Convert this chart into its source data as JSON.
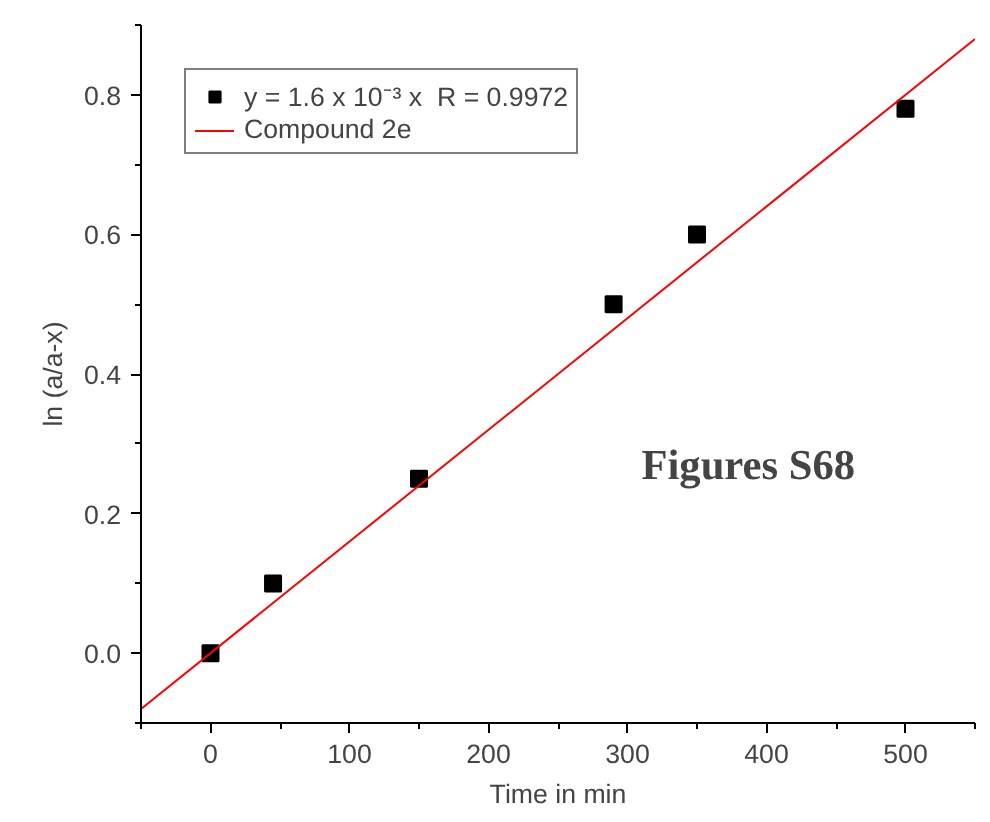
{
  "chart_data": {
    "type": "scatter",
    "xlabel": "Time in min",
    "ylabel": "ln (a/a-x)",
    "x": [
      0,
      45,
      150,
      290,
      350,
      500
    ],
    "series": [
      {
        "name": "y = 1.6 x 10⁻³ x  R = 0.9972",
        "color": "#000000",
        "values": [
          0,
          0.1,
          0.25,
          0.5,
          0.6,
          0.78
        ],
        "marker": "square"
      },
      {
        "name": "Compound 2e",
        "type": "line",
        "color": "#ff0000",
        "x": [
          -50,
          550
        ],
        "values": [
          -0.08,
          0.88
        ],
        "marker": "none",
        "line_style": "solid"
      }
    ],
    "xlim": [
      -50,
      550
    ],
    "ylim": [
      -0.1,
      0.9
    ],
    "xticks": [
      0,
      100,
      200,
      300,
      400,
      500
    ],
    "yticks": [
      {
        "value": 0,
        "label": "0.0"
      },
      {
        "value": 0.2,
        "label": "0.2"
      },
      {
        "value": 0.4,
        "label": "0.4"
      },
      {
        "value": 0.6,
        "label": "0.6"
      },
      {
        "value": 0.8,
        "label": "0.8"
      }
    ],
    "annotations": [
      "Figures S68"
    ],
    "grid": false,
    "legend": "top left"
  }
}
